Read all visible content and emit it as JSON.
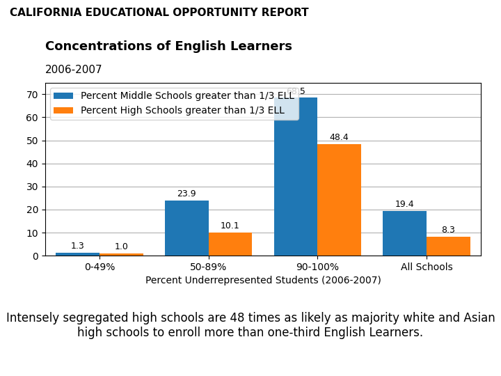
{
  "chart_data": {
    "type": "bar",
    "title": "Concentrations of English Learners",
    "subtitle": "2006-2007",
    "xlabel": "Percent Underrepresented Students (2006-2007)",
    "categories": [
      "0-49%",
      "50-89%",
      "90-100%",
      "All Schools"
    ],
    "series": [
      {
        "name": "Percent Middle Schools greater than 1/3 ELL",
        "values": [
          1.3,
          23.9,
          68.5,
          19.4
        ]
      },
      {
        "name": "Percent High Schools greater than 1/3 ELL",
        "values": [
          1.0,
          10.1,
          48.4,
          8.3
        ],
        "value_labels": [
          "1.0",
          "10.1",
          "48.4",
          "8.3"
        ]
      }
    ],
    "ylim": [
      0,
      75
    ],
    "yticks": [
      0,
      10,
      20,
      30,
      40,
      50,
      60,
      70
    ],
    "grid": true,
    "legend": "upper left",
    "data_labels": true,
    "annotations": [
      "CALIFORNIA EDUCATIONAL OPPORTUNITY REPORT",
      "Intensely segregated high schools are 48 times as likely as majority white and Asian high schools to enroll more than one-third English Learners."
    ]
  }
}
